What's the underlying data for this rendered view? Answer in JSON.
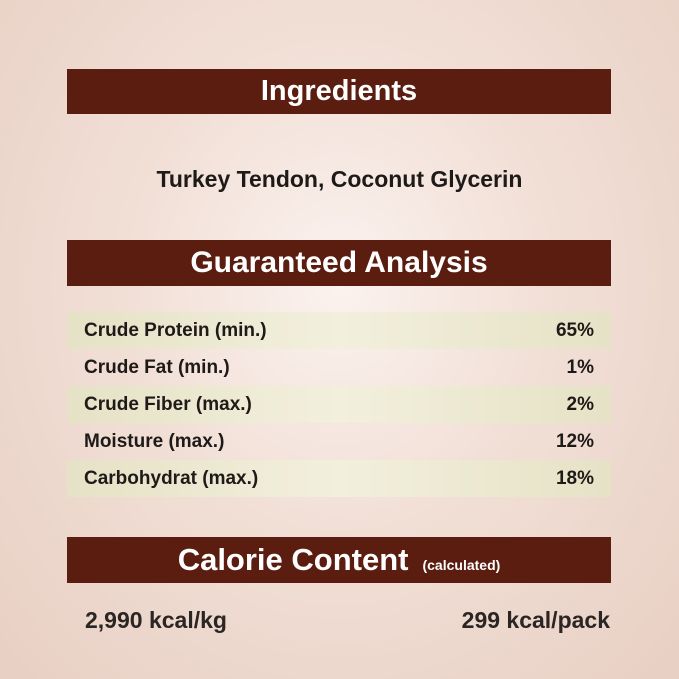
{
  "ingredients": {
    "title": "Ingredients",
    "text": "Turkey Tendon, Coconut Glycerin"
  },
  "analysis": {
    "title": "Guaranteed Analysis",
    "rows": [
      {
        "label": "Crude Protein (min.)",
        "value": "65%"
      },
      {
        "label": "Crude Fat (min.)",
        "value": "1%"
      },
      {
        "label": "Crude Fiber (max.)",
        "value": "2%"
      },
      {
        "label": "Moisture (max.)",
        "value": "12%"
      },
      {
        "label": "Carbohydrat (max.)",
        "value": "18%"
      }
    ]
  },
  "calorie": {
    "title": "Calorie Content",
    "note": "(calculated)",
    "per_kg": "2,990 kcal/kg",
    "per_pack": "299 kcal/pack"
  },
  "colors": {
    "header_bar": "#5a1d0f",
    "row_shade": "#ece8d0",
    "background": "#ecd6cb"
  }
}
